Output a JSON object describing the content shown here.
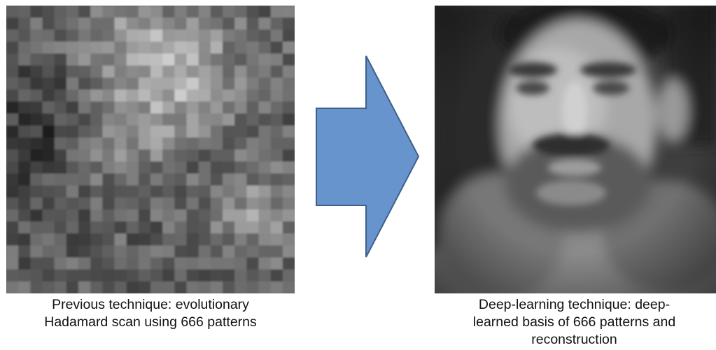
{
  "left_panel": {
    "caption_lines": [
      "Previous technique: evolutionary",
      "Hadamard scan using 666 patterns"
    ]
  },
  "right_panel": {
    "caption_lines": [
      "Deep-learning technique: deep-",
      "learned basis of 666 patterns and",
      "reconstruction"
    ]
  },
  "arrow": {
    "color": "#6794cd",
    "stroke": "#3e5f8a",
    "direction": "right"
  }
}
